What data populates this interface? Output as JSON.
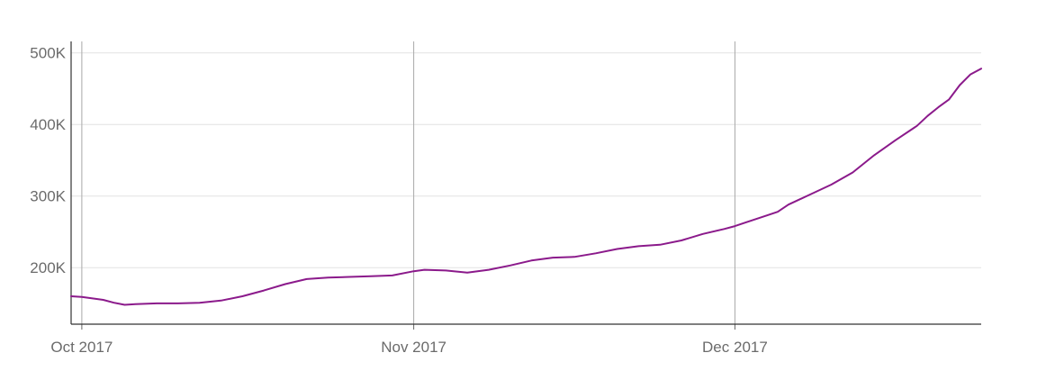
{
  "chart_data": {
    "type": "line",
    "title": "",
    "xlabel": "",
    "ylabel": "",
    "x_ticks": [
      "Oct 2017",
      "Nov 2017",
      "Dec 2017"
    ],
    "y_ticks": [
      "200K",
      "300K",
      "400K",
      "500K"
    ],
    "y_tick_values": [
      200000,
      300000,
      400000,
      500000
    ],
    "x_tick_values": [
      "2017-10-01",
      "2017-11-01",
      "2017-12-01"
    ],
    "xlim": [
      "2017-09-30",
      "2017-12-24"
    ],
    "ylim": [
      121000,
      516000
    ],
    "grid": true,
    "legend": "none",
    "series": [
      {
        "color": "#8b1a8b",
        "x": [
          "2017-09-30",
          "2017-10-01",
          "2017-10-02",
          "2017-10-03",
          "2017-10-04",
          "2017-10-05",
          "2017-10-06",
          "2017-10-08",
          "2017-10-10",
          "2017-10-12",
          "2017-10-14",
          "2017-10-16",
          "2017-10-18",
          "2017-10-20",
          "2017-10-22",
          "2017-10-24",
          "2017-10-26",
          "2017-10-28",
          "2017-10-30",
          "2017-11-01",
          "2017-11-02",
          "2017-11-04",
          "2017-11-06",
          "2017-11-08",
          "2017-11-10",
          "2017-11-12",
          "2017-11-14",
          "2017-11-16",
          "2017-11-18",
          "2017-11-20",
          "2017-11-22",
          "2017-11-24",
          "2017-11-26",
          "2017-11-28",
          "2017-11-30",
          "2017-12-01",
          "2017-12-02",
          "2017-12-04",
          "2017-12-05",
          "2017-12-06",
          "2017-12-08",
          "2017-12-10",
          "2017-12-12",
          "2017-12-14",
          "2017-12-16",
          "2017-12-18",
          "2017-12-19",
          "2017-12-20",
          "2017-12-21",
          "2017-12-22",
          "2017-12-23",
          "2017-12-24"
        ],
        "y": [
          160000,
          159000,
          157000,
          155000,
          151000,
          148000,
          149000,
          150000,
          150000,
          151000,
          154000,
          160000,
          168000,
          177000,
          184000,
          186000,
          187000,
          188000,
          189000,
          195000,
          197000,
          196000,
          193000,
          197000,
          203000,
          210000,
          214000,
          215000,
          220000,
          226000,
          230000,
          232000,
          238000,
          247000,
          254000,
          258000,
          263000,
          273000,
          278000,
          288000,
          302000,
          316000,
          333000,
          357000,
          378000,
          398000,
          412000,
          424000,
          435000,
          455000,
          470000,
          478000
        ]
      }
    ]
  }
}
